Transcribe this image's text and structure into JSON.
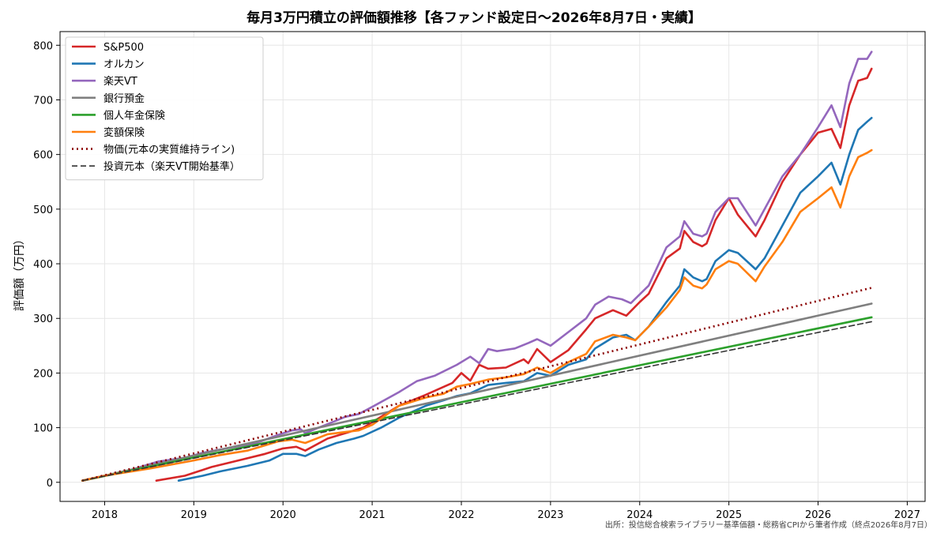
{
  "chart_data": {
    "type": "line",
    "title": "毎月3万円積立の評価額推移【各ファンド設定日〜2026年8月7日・実績】",
    "ylabel": "評価額（万円）",
    "xlabel": "",
    "source_note": "出所：投信総合検索ライブラリー基準価額・総務省CPIから筆者作成（終点2026年8月7日）",
    "xlim": [
      2017.5,
      2027.2
    ],
    "ylim": [
      -35,
      825
    ],
    "x_ticks": [
      "2018",
      "2019",
      "2020",
      "2021",
      "2022",
      "2023",
      "2024",
      "2025",
      "2026",
      "2027"
    ],
    "y_ticks": [
      "0",
      "100",
      "200",
      "300",
      "400",
      "500",
      "600",
      "700",
      "800"
    ],
    "grid": true,
    "legend_position": "top-left",
    "series": [
      {
        "name": "S&P500",
        "color": "#d62728",
        "style": "solid",
        "x": [
          2018.58,
          2018.9,
          2019.2,
          2019.5,
          2019.8,
          2020.0,
          2020.15,
          2020.25,
          2020.5,
          2020.8,
          2020.9,
          2021.0,
          2021.3,
          2021.6,
          2021.9,
          2022.0,
          2022.1,
          2022.2,
          2022.3,
          2022.5,
          2022.7,
          2022.75,
          2022.85,
          2023.0,
          2023.2,
          2023.4,
          2023.5,
          2023.7,
          2023.85,
          2024.0,
          2024.1,
          2024.3,
          2024.45,
          2024.5,
          2024.6,
          2024.7,
          2024.75,
          2024.85,
          2025.0,
          2025.1,
          2025.3,
          2025.4,
          2025.6,
          2025.8,
          2026.0,
          2026.15,
          2026.25,
          2026.35,
          2026.45,
          2026.55,
          2026.6
        ],
        "values": [
          3,
          12,
          28,
          40,
          52,
          62,
          65,
          58,
          80,
          95,
          100,
          110,
          140,
          160,
          182,
          200,
          186,
          215,
          208,
          210,
          225,
          218,
          244,
          220,
          242,
          280,
          300,
          315,
          305,
          330,
          345,
          410,
          428,
          460,
          440,
          432,
          437,
          480,
          520,
          490,
          450,
          480,
          550,
          600,
          640,
          647,
          612,
          690,
          735,
          740,
          757
        ]
      },
      {
        "name": "オルカン",
        "color": "#1f77b4",
        "style": "solid",
        "x": [
          2018.83,
          2019.1,
          2019.3,
          2019.6,
          2019.85,
          2020.0,
          2020.15,
          2020.25,
          2020.4,
          2020.6,
          2020.8,
          2020.9,
          2021.1,
          2021.3,
          2021.6,
          2021.8,
          2021.95,
          2022.1,
          2022.3,
          2022.5,
          2022.7,
          2022.85,
          2023.0,
          2023.2,
          2023.4,
          2023.5,
          2023.7,
          2023.85,
          2023.95,
          2024.1,
          2024.3,
          2024.45,
          2024.5,
          2024.6,
          2024.7,
          2024.75,
          2024.85,
          2025.0,
          2025.1,
          2025.3,
          2025.4,
          2025.6,
          2025.8,
          2026.0,
          2026.15,
          2026.25,
          2026.35,
          2026.45,
          2026.55,
          2026.6
        ],
        "values": [
          3,
          12,
          20,
          30,
          40,
          52,
          52,
          48,
          60,
          72,
          80,
          85,
          100,
          118,
          140,
          150,
          158,
          163,
          178,
          182,
          185,
          200,
          195,
          215,
          225,
          245,
          265,
          270,
          260,
          285,
          330,
          360,
          390,
          375,
          368,
          372,
          405,
          425,
          420,
          390,
          410,
          470,
          530,
          560,
          585,
          545,
          600,
          645,
          660,
          667
        ]
      },
      {
        "name": "楽天VT",
        "color": "#9467bd",
        "style": "solid",
        "x": [
          2017.75,
          2018.0,
          2018.3,
          2018.6,
          2018.9,
          2019.1,
          2019.4,
          2019.7,
          2019.95,
          2020.1,
          2020.2,
          2020.25,
          2020.4,
          2020.6,
          2020.7,
          2020.85,
          2021.0,
          2021.3,
          2021.5,
          2021.7,
          2021.95,
          2022.1,
          2022.2,
          2022.3,
          2022.4,
          2022.6,
          2022.75,
          2022.85,
          2023.0,
          2023.2,
          2023.4,
          2023.5,
          2023.65,
          2023.8,
          2023.9,
          2024.1,
          2024.3,
          2024.45,
          2024.5,
          2024.6,
          2024.7,
          2024.75,
          2024.85,
          2025.0,
          2025.1,
          2025.3,
          2025.4,
          2025.6,
          2025.8,
          2026.0,
          2026.15,
          2026.25,
          2026.35,
          2026.45,
          2026.55,
          2026.6
        ],
        "values": [
          3,
          12,
          23,
          38,
          45,
          54,
          63,
          72,
          87,
          95,
          97,
          90,
          100,
          113,
          120,
          125,
          138,
          165,
          185,
          195,
          215,
          230,
          218,
          244,
          240,
          245,
          255,
          262,
          250,
          275,
          300,
          325,
          340,
          335,
          328,
          360,
          430,
          450,
          478,
          455,
          450,
          455,
          495,
          520,
          520,
          470,
          500,
          560,
          600,
          650,
          690,
          650,
          730,
          775,
          775,
          788
        ]
      },
      {
        "name": "銀行預金",
        "color": "#7f7f7f",
        "style": "solid",
        "x": [
          2017.75,
          2026.6
        ],
        "values": [
          3,
          327
        ]
      },
      {
        "name": "個人年金保険",
        "color": "#2ca02c",
        "style": "solid",
        "x": [
          2017.75,
          2026.6
        ],
        "values": [
          3,
          302
        ]
      },
      {
        "name": "変額保険",
        "color": "#ff7f0e",
        "style": "solid",
        "x": [
          2017.75,
          2018.0,
          2018.5,
          2019.0,
          2019.3,
          2019.6,
          2019.95,
          2020.1,
          2020.25,
          2020.5,
          2020.7,
          2020.85,
          2021.0,
          2021.3,
          2021.6,
          2021.8,
          2021.95,
          2022.1,
          2022.3,
          2022.5,
          2022.7,
          2022.85,
          2023.0,
          2023.2,
          2023.4,
          2023.5,
          2023.7,
          2023.85,
          2023.95,
          2024.1,
          2024.3,
          2024.45,
          2024.5,
          2024.6,
          2024.7,
          2024.75,
          2024.85,
          2025.0,
          2025.1,
          2025.3,
          2025.4,
          2025.6,
          2025.8,
          2026.0,
          2026.15,
          2026.25,
          2026.35,
          2026.45,
          2026.55,
          2026.6
        ],
        "values": [
          3,
          12,
          25,
          40,
          50,
          58,
          75,
          78,
          72,
          88,
          92,
          95,
          105,
          140,
          155,
          162,
          175,
          180,
          188,
          192,
          198,
          210,
          200,
          220,
          235,
          258,
          270,
          265,
          260,
          285,
          320,
          352,
          375,
          360,
          355,
          362,
          390,
          405,
          400,
          368,
          395,
          440,
          495,
          520,
          540,
          503,
          560,
          595,
          603,
          608
        ]
      },
      {
        "name": "物価(元本の実質維持ライン)",
        "color": "#8b0000",
        "style": "dotted",
        "x": [
          2017.75,
          2026.6
        ],
        "values": [
          3,
          356
        ]
      },
      {
        "name": "投資元本（楽天VT開始基準）",
        "color": "#333333",
        "style": "dashed",
        "x": [
          2017.75,
          2026.6
        ],
        "values": [
          3,
          294
        ]
      }
    ]
  }
}
